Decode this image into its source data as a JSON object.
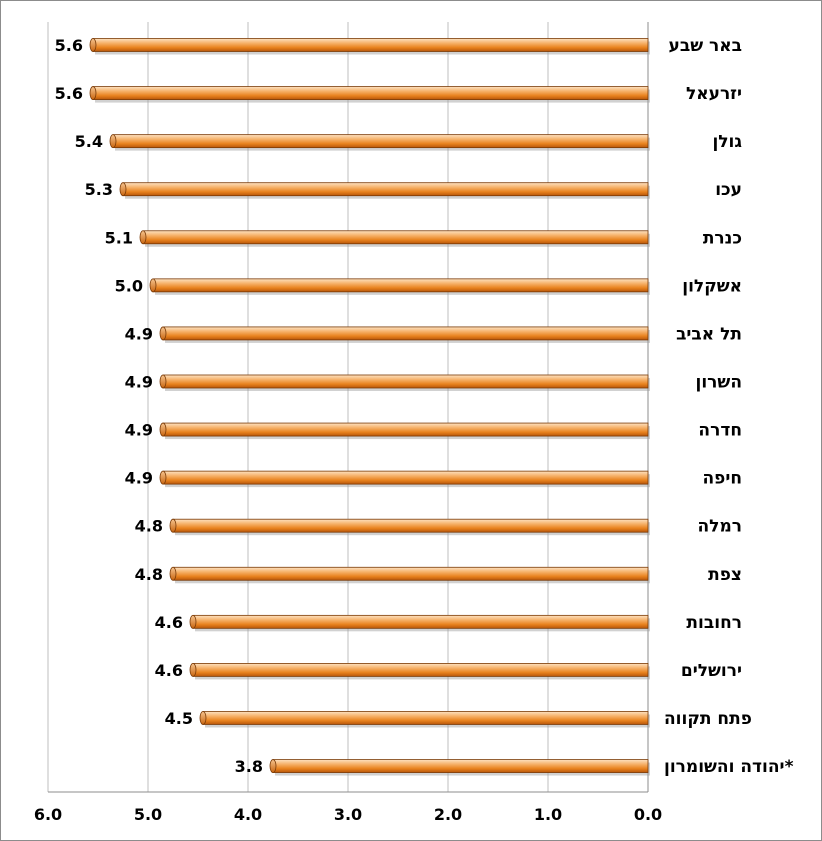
{
  "chart_data": {
    "type": "bar",
    "orientation": "horizontal",
    "x_direction": "reversed",
    "title": "",
    "xlabel": "",
    "ylabel": "",
    "xlim": [
      0,
      6
    ],
    "x_ticks": [
      "6.0",
      "5.0",
      "4.0",
      "3.0",
      "2.0",
      "1.0",
      "0.0"
    ],
    "x_tick_values": [
      6,
      5,
      4,
      3,
      2,
      1,
      0
    ],
    "grid": "vertical",
    "legend": "none",
    "categories": [
      "באר שבע",
      "יזרעאל",
      "גולן",
      "עכו",
      "כנרת",
      "אשקלון",
      "תל אביב",
      "השרון",
      "חדרה",
      "חיפה",
      "רמלה",
      "צפת",
      "רחובות",
      "ירושלים",
      "פתח תקווה",
      "יהודה והשומרון*"
    ],
    "values": [
      5.55,
      5.55,
      5.35,
      5.25,
      5.05,
      4.95,
      4.85,
      4.85,
      4.85,
      4.85,
      4.75,
      4.75,
      4.55,
      4.55,
      4.45,
      3.75
    ],
    "value_labels": [
      "5.6",
      "5.6",
      "5.4",
      "5.3",
      "5.1",
      "5.0",
      "4.9",
      "4.9",
      "4.9",
      "4.9",
      "4.8",
      "4.8",
      "4.6",
      "4.6",
      "4.5",
      "3.8"
    ],
    "colors": {
      "bar_light": "#f6b26b",
      "bar_mid": "#e8821e",
      "bar_dark": "#b8560a",
      "bar_edge": "#7a3a06",
      "gridline": "#bfbfbf",
      "axis": "#8c8c8c",
      "text": "#000000"
    }
  }
}
